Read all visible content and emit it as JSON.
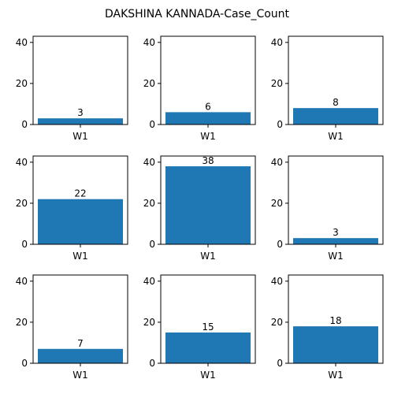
{
  "title": "DAKSHINA KANNADA-Case_Count",
  "chart_data": [
    {
      "type": "bar",
      "categories": [
        "W1"
      ],
      "values": [
        3
      ],
      "ylim": [
        0,
        43
      ],
      "yticks": [
        0,
        20,
        40
      ],
      "color": "#1f77b4"
    },
    {
      "type": "bar",
      "categories": [
        "W1"
      ],
      "values": [
        6
      ],
      "ylim": [
        0,
        43
      ],
      "yticks": [
        0,
        20,
        40
      ],
      "color": "#1f77b4"
    },
    {
      "type": "bar",
      "categories": [
        "W1"
      ],
      "values": [
        8
      ],
      "ylim": [
        0,
        43
      ],
      "yticks": [
        0,
        20,
        40
      ],
      "color": "#1f77b4"
    },
    {
      "type": "bar",
      "categories": [
        "W1"
      ],
      "values": [
        22
      ],
      "ylim": [
        0,
        43
      ],
      "yticks": [
        0,
        20,
        40
      ],
      "color": "#1f77b4"
    },
    {
      "type": "bar",
      "categories": [
        "W1"
      ],
      "values": [
        38
      ],
      "ylim": [
        0,
        43
      ],
      "yticks": [
        0,
        20,
        40
      ],
      "color": "#1f77b4"
    },
    {
      "type": "bar",
      "categories": [
        "W1"
      ],
      "values": [
        3
      ],
      "ylim": [
        0,
        43
      ],
      "yticks": [
        0,
        20,
        40
      ],
      "color": "#1f77b4"
    },
    {
      "type": "bar",
      "categories": [
        "W1"
      ],
      "values": [
        7
      ],
      "ylim": [
        0,
        43
      ],
      "yticks": [
        0,
        20,
        40
      ],
      "color": "#1f77b4"
    },
    {
      "type": "bar",
      "categories": [
        "W1"
      ],
      "values": [
        15
      ],
      "ylim": [
        0,
        43
      ],
      "yticks": [
        0,
        20,
        40
      ],
      "color": "#1f77b4"
    },
    {
      "type": "bar",
      "categories": [
        "W1"
      ],
      "values": [
        18
      ],
      "ylim": [
        0,
        43
      ],
      "yticks": [
        0,
        20,
        40
      ],
      "color": "#1f77b4"
    }
  ]
}
